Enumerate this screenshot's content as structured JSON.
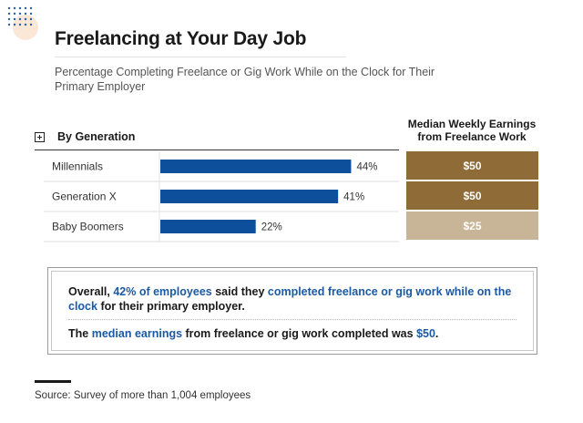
{
  "header": {
    "title": "Freelancing at Your Day Job",
    "subtitle": "Percentage Completing Freelance or Gig Work While on the Clock for Their Primary Employer"
  },
  "generation_header": {
    "label": "By Generation"
  },
  "earnings_header": {
    "label": "Median Weekly Earnings from Freelance Work"
  },
  "colors": {
    "bar": "#0e4f9c",
    "earn_dark": "#8f6b37",
    "earn_light": "#c8b597",
    "highlight": "#1b5aa3"
  },
  "chart_data": {
    "type": "bar",
    "orientation": "horizontal",
    "categories": [
      "Millennials",
      "Generation X",
      "Baby Boomers"
    ],
    "values": [
      44,
      41,
      22
    ],
    "value_labels": [
      "44%",
      "41%",
      "22%"
    ],
    "xlim": [
      0,
      100
    ],
    "grid": false,
    "earnings": [
      "$50",
      "$50",
      "$25"
    ],
    "earnings_values": [
      50,
      50,
      25
    ]
  },
  "callout": {
    "p1": [
      {
        "text": "Overall, ",
        "hl": false
      },
      {
        "text": "42% of employees",
        "hl": true
      },
      {
        "text": " said they ",
        "hl": false
      },
      {
        "text": "completed freelance or gig work while on the clock",
        "hl": true
      },
      {
        "text": " for their primary employer.",
        "hl": false
      }
    ],
    "p2": [
      {
        "text": "The ",
        "hl": false
      },
      {
        "text": "median earnings",
        "hl": true
      },
      {
        "text": " from freelance or gig work completed was ",
        "hl": false
      },
      {
        "text": "$50",
        "hl": true
      },
      {
        "text": ".",
        "hl": false
      }
    ]
  },
  "source": "Source: Survey of more than 1,004 employees"
}
